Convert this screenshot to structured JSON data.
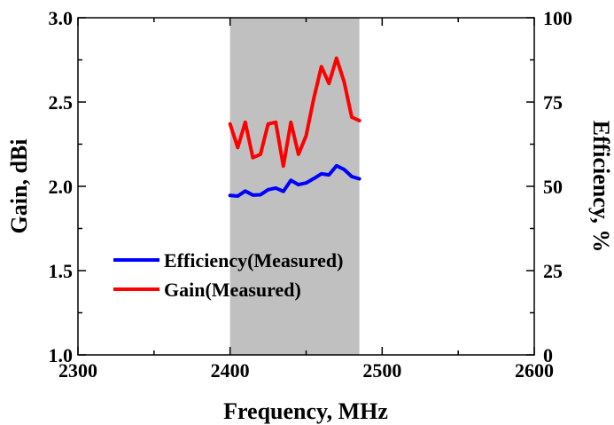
{
  "chart_data": {
    "type": "line",
    "title": "",
    "xlabel": "Frequency, MHz",
    "ylabel": "Gain, dBi",
    "y2label": "Efficiency, %",
    "xlim": [
      2300,
      2600
    ],
    "ylim": [
      1.0,
      3.0
    ],
    "y2lim": [
      0,
      100
    ],
    "xticks": [
      "2300",
      "2400",
      "2500",
      "2600"
    ],
    "yticks": [
      "1.0",
      "1.5",
      "2.0",
      "2.5",
      "3.0"
    ],
    "y2ticks": [
      "0",
      "25",
      "50",
      "75",
      "100"
    ],
    "highlight_band": {
      "x_start": 2400,
      "x_end": 2485,
      "color": "#c0c0c0"
    },
    "legend_position": "lower-left",
    "series": [
      {
        "name": "Efficiency(Measured)",
        "axis": "right",
        "color": "#0000ff",
        "x": [
          2400,
          2405,
          2410,
          2415,
          2420,
          2425,
          2430,
          2435,
          2440,
          2445,
          2450,
          2455,
          2460,
          2465,
          2470,
          2475,
          2480,
          2485
        ],
        "values": [
          47.3,
          47.1,
          48.6,
          47.4,
          47.5,
          49.0,
          49.5,
          48.5,
          51.8,
          50.5,
          51.0,
          52.3,
          53.7,
          53.4,
          56.1,
          55.0,
          52.9,
          52.2
        ]
      },
      {
        "name": "Gain(Measured)",
        "axis": "left",
        "color": "#ff0000",
        "x": [
          2400,
          2405,
          2410,
          2415,
          2420,
          2425,
          2430,
          2435,
          2440,
          2445,
          2450,
          2455,
          2460,
          2465,
          2470,
          2475,
          2480,
          2485
        ],
        "values": [
          2.37,
          2.23,
          2.38,
          2.17,
          2.19,
          2.37,
          2.38,
          2.12,
          2.38,
          2.19,
          2.3,
          2.52,
          2.71,
          2.61,
          2.76,
          2.62,
          2.41,
          2.39
        ]
      }
    ]
  }
}
